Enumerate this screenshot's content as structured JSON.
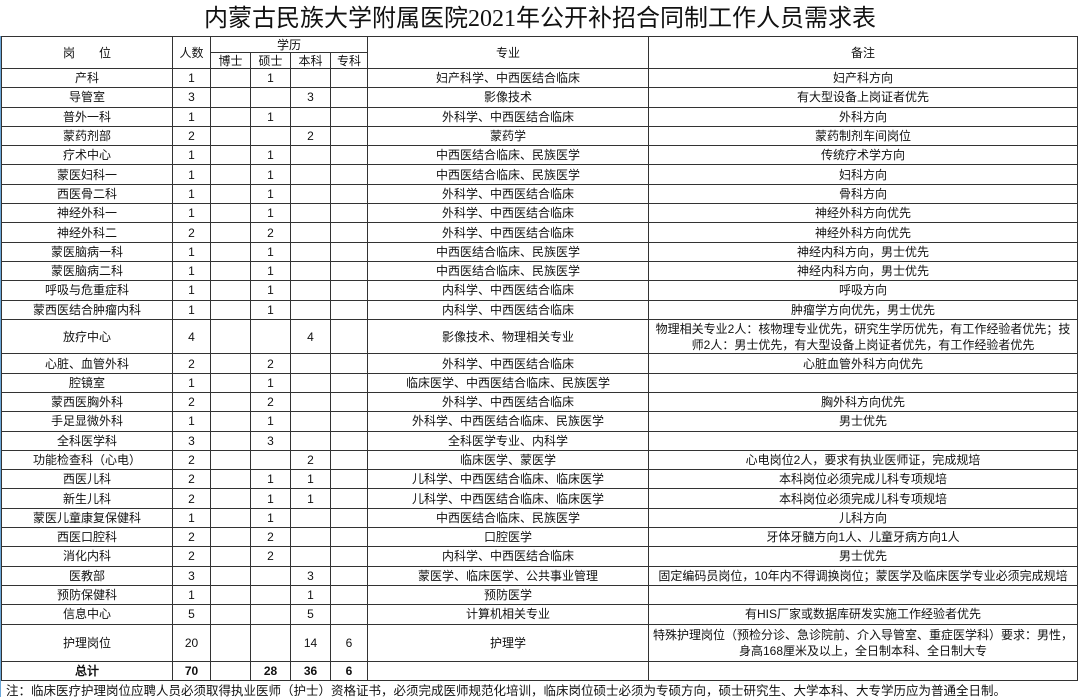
{
  "title": "内蒙古民族大学附属医院2021年公开补招合同制工作人员需求表",
  "headers": {
    "position": "岗　　位",
    "count": "人数",
    "education": "学历",
    "phd": "博士",
    "master": "硕士",
    "bachelor": "本科",
    "college": "专科",
    "major": "专业",
    "remarks": "备注"
  },
  "rows": [
    {
      "position": "产科",
      "count": "1",
      "phd": "",
      "master": "1",
      "bachelor": "",
      "college": "",
      "major": "妇产科学、中西医结合临床",
      "remarks": "妇产科方向"
    },
    {
      "position": "导管室",
      "count": "3",
      "phd": "",
      "master": "",
      "bachelor": "3",
      "college": "",
      "major": "影像技术",
      "remarks": "有大型设备上岗证者优先"
    },
    {
      "position": "普外一科",
      "count": "1",
      "phd": "",
      "master": "1",
      "bachelor": "",
      "college": "",
      "major": "外科学、中西医结合临床",
      "remarks": "外科方向"
    },
    {
      "position": "蒙药剂部",
      "count": "2",
      "phd": "",
      "master": "",
      "bachelor": "2",
      "college": "",
      "major": "蒙药学",
      "remarks": "蒙药制剂车间岗位"
    },
    {
      "position": "疗术中心",
      "count": "1",
      "phd": "",
      "master": "1",
      "bachelor": "",
      "college": "",
      "major": "中西医结合临床、民族医学",
      "remarks": "传统疗术学方向"
    },
    {
      "position": "蒙医妇科一",
      "count": "1",
      "phd": "",
      "master": "1",
      "bachelor": "",
      "college": "",
      "major": "中西医结合临床、民族医学",
      "remarks": "妇科方向"
    },
    {
      "position": "西医骨二科",
      "count": "1",
      "phd": "",
      "master": "1",
      "bachelor": "",
      "college": "",
      "major": "外科学、中西医结合临床",
      "remarks": "骨科方向"
    },
    {
      "position": "神经外科一",
      "count": "1",
      "phd": "",
      "master": "1",
      "bachelor": "",
      "college": "",
      "major": "外科学、中西医结合临床",
      "remarks": "神经外科方向优先"
    },
    {
      "position": "神经外科二",
      "count": "2",
      "phd": "",
      "master": "2",
      "bachelor": "",
      "college": "",
      "major": "外科学、中西医结合临床",
      "remarks": "神经外科方向优先"
    },
    {
      "position": "蒙医脑病一科",
      "count": "1",
      "phd": "",
      "master": "1",
      "bachelor": "",
      "college": "",
      "major": "中西医结合临床、民族医学",
      "remarks": "神经内科方向，男士优先"
    },
    {
      "position": "蒙医脑病二科",
      "count": "1",
      "phd": "",
      "master": "1",
      "bachelor": "",
      "college": "",
      "major": "中西医结合临床、民族医学",
      "remarks": "神经内科方向，男士优先"
    },
    {
      "position": "呼吸与危重症科",
      "count": "1",
      "phd": "",
      "master": "1",
      "bachelor": "",
      "college": "",
      "major": "内科学、中西医结合临床",
      "remarks": "呼吸方向"
    },
    {
      "position": "蒙西医结合肿瘤内科",
      "count": "1",
      "phd": "",
      "master": "1",
      "bachelor": "",
      "college": "",
      "major": "内科学、中西医结合临床",
      "remarks": "肿瘤学方向优先，男士优先"
    },
    {
      "position": "放疗中心",
      "count": "4",
      "phd": "",
      "master": "",
      "bachelor": "4",
      "college": "",
      "major": "影像技术、物理相关专业",
      "remarks": "物理相关专业2人：核物理专业优先，研究生学历优先，有工作经验者优先；技师2人：男士优先，有大型设备上岗证者优先，有工作经验者优先",
      "tall": "tall"
    },
    {
      "position": "心脏、血管外科",
      "count": "2",
      "phd": "",
      "master": "2",
      "bachelor": "",
      "college": "",
      "major": "外科学、中西医结合临床",
      "remarks": "心脏血管外科方向优先"
    },
    {
      "position": "腔镜室",
      "count": "1",
      "phd": "",
      "master": "1",
      "bachelor": "",
      "college": "",
      "major": "临床医学、中西医结合临床、民族医学",
      "remarks": ""
    },
    {
      "position": "蒙西医胸外科",
      "count": "2",
      "phd": "",
      "master": "2",
      "bachelor": "",
      "college": "",
      "major": "外科学、中西医结合临床",
      "remarks": "胸外科方向优先"
    },
    {
      "position": "手足显微外科",
      "count": "1",
      "phd": "",
      "master": "1",
      "bachelor": "",
      "college": "",
      "major": "外科学、中西医结合临床、民族医学",
      "remarks": "男士优先"
    },
    {
      "position": "全科医学科",
      "count": "3",
      "phd": "",
      "master": "3",
      "bachelor": "",
      "college": "",
      "major": "全科医学专业、内科学",
      "remarks": ""
    },
    {
      "position": "功能检查科（心电）",
      "count": "2",
      "phd": "",
      "master": "",
      "bachelor": "2",
      "college": "",
      "major": "临床医学、蒙医学",
      "remarks": "心电岗位2人，要求有执业医师证，完成规培"
    },
    {
      "position": "西医儿科",
      "count": "2",
      "phd": "",
      "master": "1",
      "bachelor": "1",
      "college": "",
      "major": "儿科学、中西医结合临床、临床医学",
      "remarks": "本科岗位必须完成儿科专项规培"
    },
    {
      "position": "新生儿科",
      "count": "2",
      "phd": "",
      "master": "1",
      "bachelor": "1",
      "college": "",
      "major": "儿科学、中西医结合临床、临床医学",
      "remarks": "本科岗位必须完成儿科专项规培"
    },
    {
      "position": "蒙医儿童康复保健科",
      "count": "1",
      "phd": "",
      "master": "1",
      "bachelor": "",
      "college": "",
      "major": "中西医结合临床、民族医学",
      "remarks": "儿科方向"
    },
    {
      "position": "西医口腔科",
      "count": "2",
      "phd": "",
      "master": "2",
      "bachelor": "",
      "college": "",
      "major": "口腔医学",
      "remarks": "牙体牙髓方向1人、儿童牙病方向1人"
    },
    {
      "position": "消化内科",
      "count": "2",
      "phd": "",
      "master": "2",
      "bachelor": "",
      "college": "",
      "major": "内科学、中西医结合临床",
      "remarks": "男士优先"
    },
    {
      "position": "医教部",
      "count": "3",
      "phd": "",
      "master": "",
      "bachelor": "3",
      "college": "",
      "major": "蒙医学、临床医学、公共事业管理",
      "remarks": "固定编码员岗位，10年内不得调换岗位；蒙医学及临床医学专业必须完成规培"
    },
    {
      "position": "预防保健科",
      "count": "1",
      "phd": "",
      "master": "",
      "bachelor": "1",
      "college": "",
      "major": "预防医学",
      "remarks": ""
    },
    {
      "position": "信息中心",
      "count": "5",
      "phd": "",
      "master": "",
      "bachelor": "5",
      "college": "",
      "major": "计算机相关专业",
      "remarks": "有HIS厂家或数据库研发实施工作经验者优先"
    },
    {
      "position": "护理岗位",
      "count": "20",
      "phd": "",
      "master": "",
      "bachelor": "14",
      "college": "6",
      "major": "护理学",
      "remarks": "特殊护理岗位（预检分诊、急诊院前、介入导管室、重症医学科）要求：男性，身高168厘米及以上，全日制本科、全日制大专",
      "tall": "tall2"
    }
  ],
  "total": {
    "position": "总计",
    "count": "70",
    "phd": "",
    "master": "28",
    "bachelor": "36",
    "college": "6",
    "major": "",
    "remarks": ""
  },
  "note": "注：临床医疗护理岗位应聘人员必须取得执业医师（护士）资格证书，必须完成医师规范化培训，临床岗位硕士必须为专硕方向，硕士研究生、大学本科、大专学历应为普通全日制。"
}
